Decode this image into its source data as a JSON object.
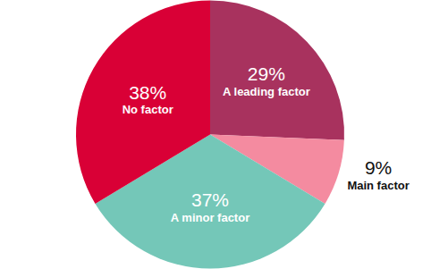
{
  "chart_data": {
    "type": "pie",
    "categories": [
      "A leading factor",
      "Main factor",
      "A minor factor",
      "No factor"
    ],
    "values": [
      29,
      9,
      37,
      38
    ],
    "value_labels": [
      "29%",
      "9%",
      "37%",
      "38%"
    ],
    "colors": [
      "#a8325e",
      "#f48ba0",
      "#74c7b8",
      "#d90036"
    ],
    "data_labels": true
  }
}
